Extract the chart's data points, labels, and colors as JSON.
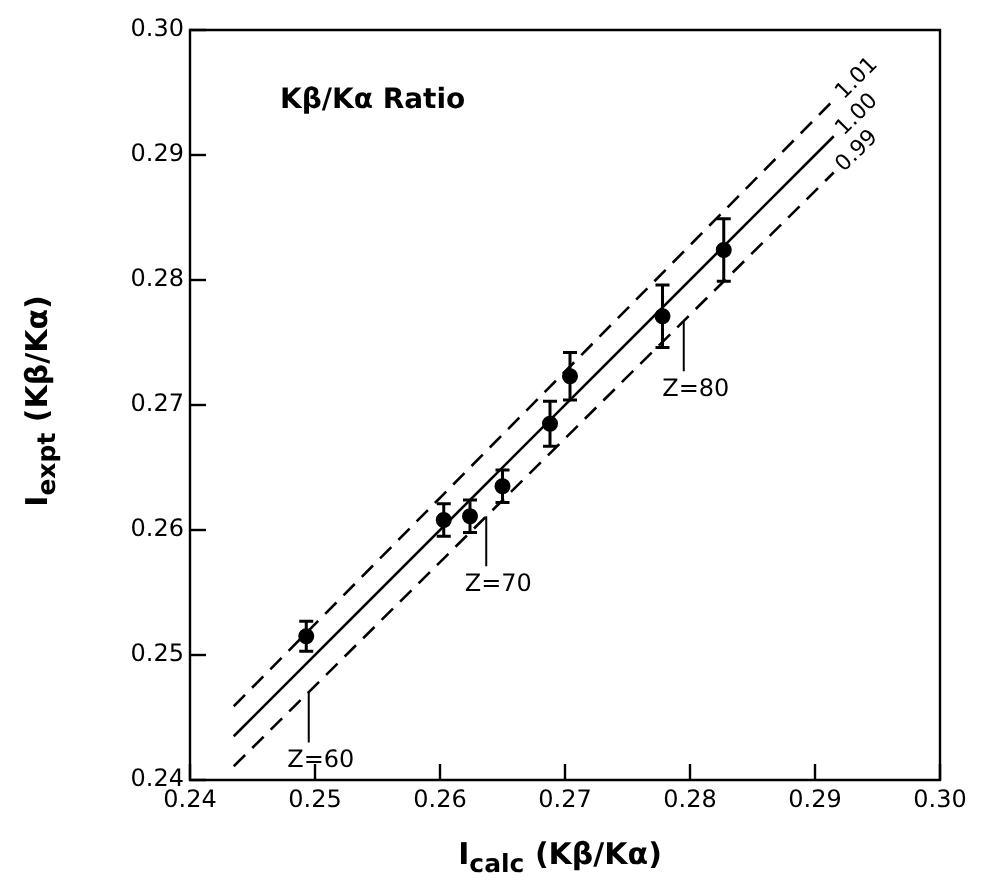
{
  "chart_data": {
    "type": "scatter",
    "title": "Kβ/Kα Ratio",
    "xlabel": "I$_{calc}$ (Kβ/Kα)",
    "ylabel": "I$_{expt}$ (Kβ/Kα)",
    "xlim": [
      0.24,
      0.3
    ],
    "ylim": [
      0.24,
      0.3
    ],
    "xticks": [
      0.24,
      0.25,
      0.26,
      0.27,
      0.28,
      0.29,
      {
        "value": 0.3,
        "label": "0.30"
      }
    ],
    "yticks": [
      0.24,
      0.25,
      0.26,
      0.27,
      0.28,
      0.29,
      {
        "value": 0.3,
        "label": "0.30"
      }
    ],
    "grid": false,
    "legend": false,
    "marker": "circle",
    "series": [
      {
        "color": "#000000",
        "x": [
          0.2493,
          0.2603,
          0.2624,
          0.265,
          0.2688,
          0.2704,
          0.2778,
          0.2827
        ],
        "values": [
          0.2515,
          0.2608,
          0.2611,
          0.2635,
          0.2685,
          0.2723,
          0.2771,
          0.2824
        ],
        "errors": [
          0.0012,
          0.0013,
          0.0013,
          0.0013,
          0.0018,
          0.0019,
          0.0025,
          0.0025
        ]
      },
      {
        "type": "line",
        "name": "1.01",
        "color": "#000000",
        "line_style": "dashed",
        "marker": "none",
        "x": [
          0.2435,
          0.2915
        ],
        "values": [
          0.2459,
          0.2944
        ]
      },
      {
        "type": "line",
        "name": "1.00",
        "color": "#000000",
        "line_style": "solid",
        "marker": "none",
        "x": [
          0.2435,
          0.2915
        ],
        "values": [
          0.2435,
          0.2915
        ]
      },
      {
        "type": "line",
        "name": "0.99",
        "color": "#000000",
        "line_style": "dashed",
        "marker": "none",
        "x": [
          0.2435,
          0.2915
        ],
        "values": [
          0.2411,
          0.2886
        ]
      }
    ],
    "annotations": [
      {
        "text": "Z=60",
        "x": 0.2495,
        "y": 0.247
      },
      {
        "text": "Z=70",
        "x": 0.2637,
        "y": 0.2611
      },
      {
        "text": "Z=80",
        "x": 0.2795,
        "y": 0.2767
      }
    ]
  }
}
